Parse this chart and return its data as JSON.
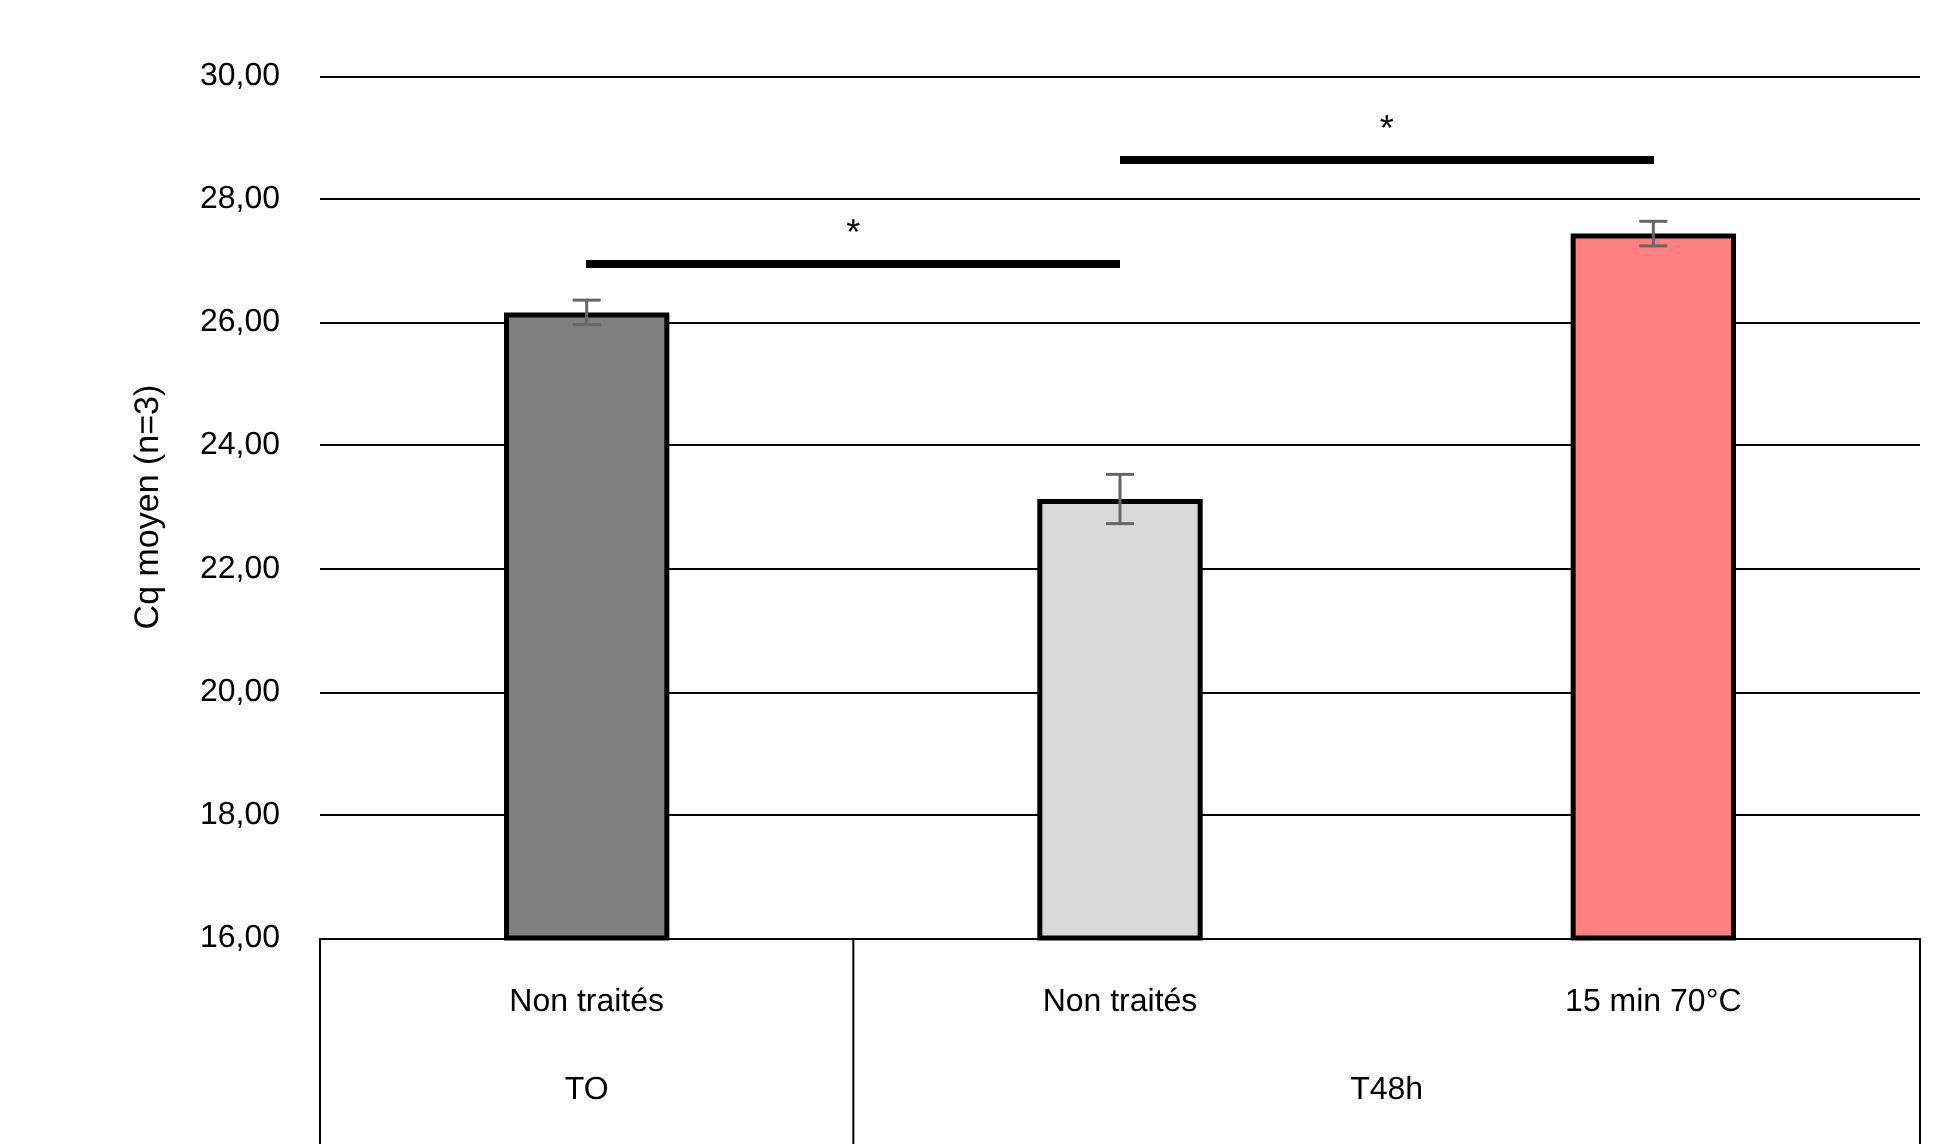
{
  "chart_data": {
    "type": "bar",
    "ylabel": "Cq moyen (n=3)",
    "categories": [
      "Non traités",
      "Non traités",
      "15 min 70°C"
    ],
    "values": [
      26.16,
      23.13,
      27.44
    ],
    "errors": [
      0.2,
      0.4,
      0.2
    ],
    "colors": [
      "#808080",
      "#d9d9d9",
      "#ff8080"
    ],
    "ylim": [
      16,
      30
    ],
    "yticks": [
      {
        "value": 16,
        "label": "16,00"
      },
      {
        "value": 18,
        "label": "18,00"
      },
      {
        "value": 20,
        "label": "20,00"
      },
      {
        "value": 22,
        "label": "22,00"
      },
      {
        "value": 24,
        "label": "24,00"
      },
      {
        "value": 26,
        "label": "26,00"
      },
      {
        "value": 28,
        "label": "28,00"
      },
      {
        "value": 30,
        "label": "30,00"
      }
    ],
    "grid": "y",
    "annotations": [
      "*",
      "*",
      "TO",
      "T48h"
    ]
  }
}
